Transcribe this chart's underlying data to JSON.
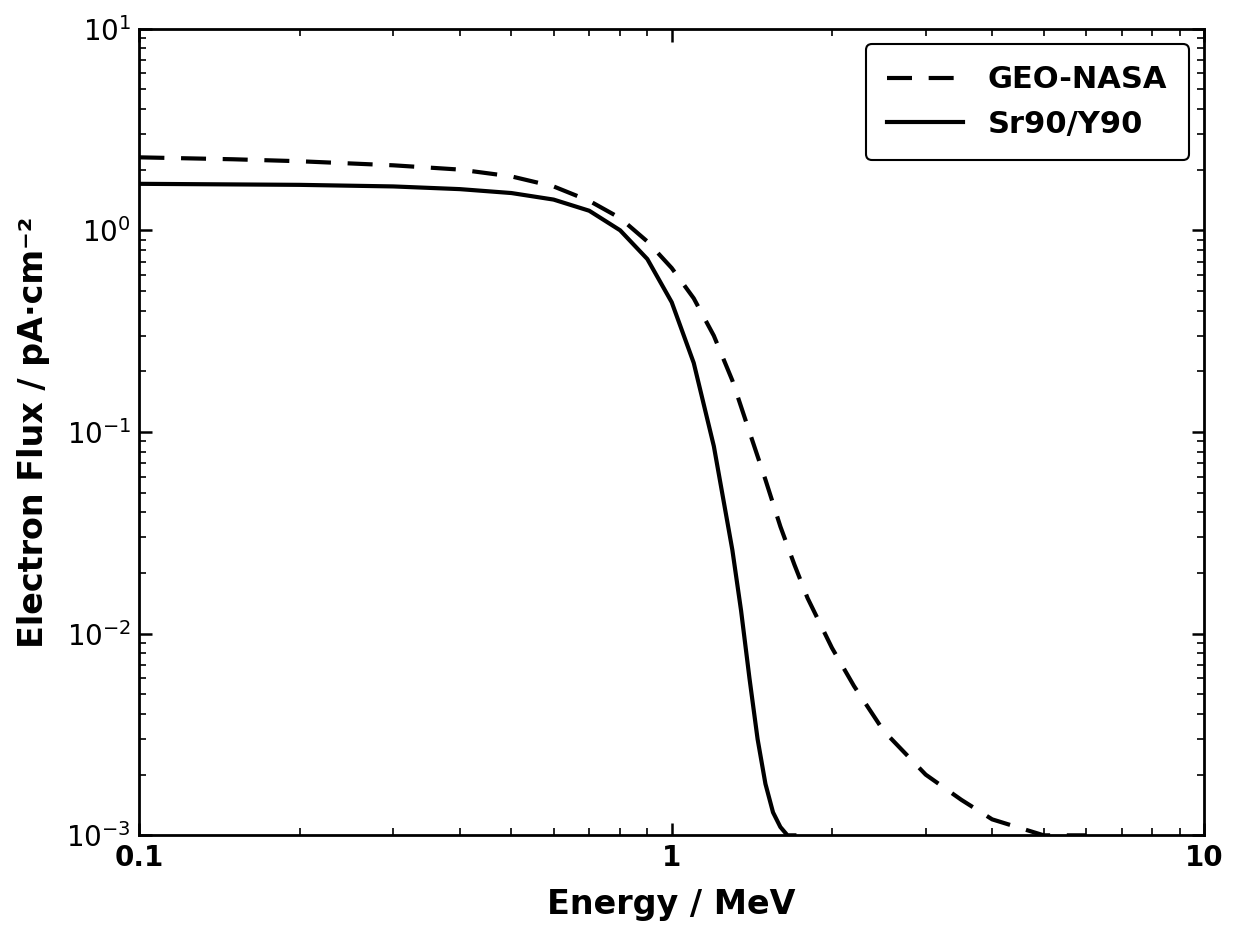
{
  "title": "",
  "xlabel": "Energy / MeV",
  "ylabel": "Electron Flux / pA·cm⁻²",
  "xlim": [
    0.1,
    10
  ],
  "ylim": [
    0.001,
    10
  ],
  "background_color": "#ffffff",
  "legend_labels": [
    "GEO-NASA",
    "Sr90/Y90"
  ],
  "geo_nasa_x": [
    0.1,
    0.15,
    0.2,
    0.3,
    0.4,
    0.5,
    0.6,
    0.7,
    0.8,
    0.9,
    1.0,
    1.1,
    1.2,
    1.3,
    1.4,
    1.5,
    1.6,
    1.7,
    1.8,
    2.0,
    2.2,
    2.5,
    3.0,
    3.5,
    4.0,
    5.0,
    6.0
  ],
  "geo_nasa_y": [
    2.3,
    2.25,
    2.2,
    2.1,
    2.0,
    1.85,
    1.65,
    1.4,
    1.15,
    0.88,
    0.65,
    0.46,
    0.3,
    0.18,
    0.1,
    0.058,
    0.034,
    0.022,
    0.015,
    0.0085,
    0.0055,
    0.0033,
    0.002,
    0.0015,
    0.0012,
    0.001,
    0.001
  ],
  "sr90_x": [
    0.1,
    0.2,
    0.3,
    0.4,
    0.5,
    0.6,
    0.7,
    0.8,
    0.9,
    1.0,
    1.1,
    1.2,
    1.3,
    1.35,
    1.4,
    1.45,
    1.5,
    1.55,
    1.6,
    1.65,
    1.7
  ],
  "sr90_y": [
    1.7,
    1.68,
    1.65,
    1.6,
    1.53,
    1.42,
    1.25,
    1.0,
    0.72,
    0.44,
    0.22,
    0.085,
    0.026,
    0.013,
    0.006,
    0.003,
    0.0018,
    0.0013,
    0.0011,
    0.001,
    0.001
  ],
  "line_color": "#000000",
  "linewidth": 3.0,
  "dash_linewidth": 3.0
}
